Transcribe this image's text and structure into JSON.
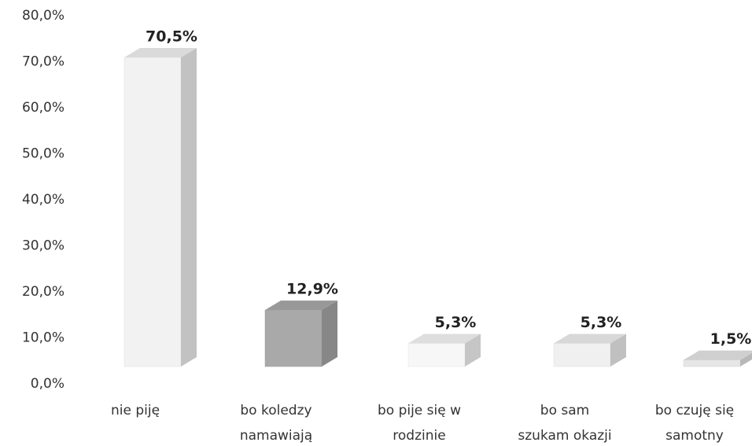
{
  "chart_data": {
    "type": "bar3d",
    "categories": [
      [
        "nie piję"
      ],
      [
        "bo koledzy",
        "namawiają"
      ],
      [
        "bo pije się w",
        "rodzinie"
      ],
      [
        "bo sam",
        "szukam okazji"
      ],
      [
        "bo czuję się",
        "samotny"
      ]
    ],
    "values": [
      70.5,
      12.9,
      5.3,
      5.3,
      1.5
    ],
    "value_labels": [
      "70,5%",
      "12,9%",
      "5,3%",
      "5,3%",
      "1,5%"
    ],
    "colors": [
      "#f2f2f2",
      "#a9a9a9",
      "#f7f7f7",
      "#f0f0f0",
      "#e6e6e6"
    ],
    "ylim": [
      0,
      80
    ],
    "yticks": [
      {
        "value": 0,
        "label": "0,0%"
      },
      {
        "value": 10,
        "label": "10,0%"
      },
      {
        "value": 20,
        "label": "20,0%"
      },
      {
        "value": 30,
        "label": "30,0%"
      },
      {
        "value": 40,
        "label": "40,0%"
      },
      {
        "value": 50,
        "label": "50,0%"
      },
      {
        "value": 60,
        "label": "60,0%"
      },
      {
        "value": 70,
        "label": "70,0%"
      },
      {
        "value": 80,
        "label": "80,0%"
      }
    ],
    "grid": false
  }
}
